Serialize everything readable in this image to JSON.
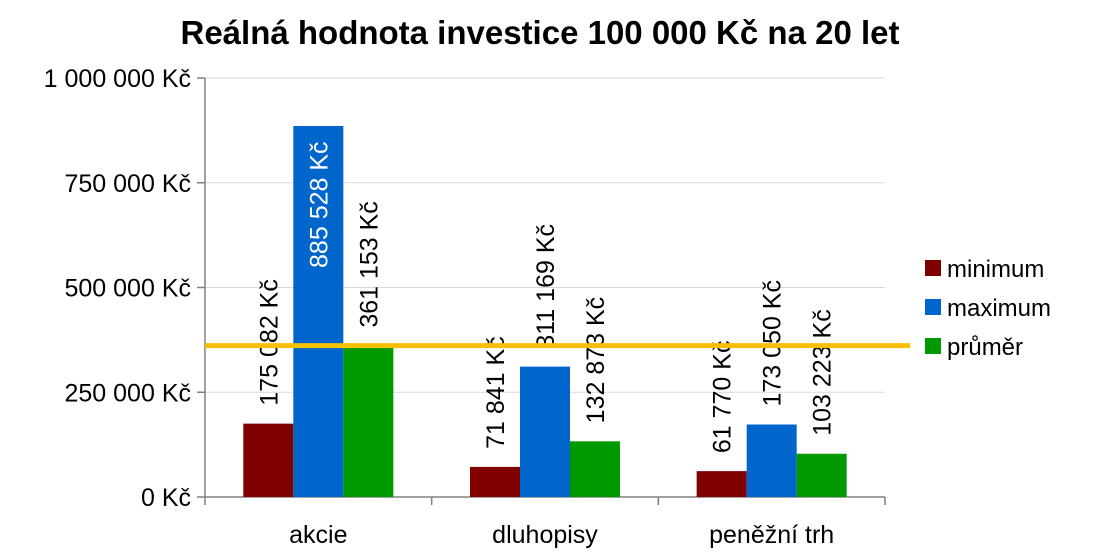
{
  "chart_data": {
    "type": "bar",
    "title": "Reálná hodnota investice 100 000 Kč na 20 let",
    "categories": [
      "akcie",
      "dluhopisy",
      "peněžní trh"
    ],
    "series": [
      {
        "name": "minimum",
        "color": "#800000",
        "values": [
          175082,
          71841,
          61770
        ],
        "labels": [
          "175 082 Kč",
          "71 841 Kč",
          "61 770 Kč"
        ],
        "label_color": "#000000"
      },
      {
        "name": "maximum",
        "color": "#0066cc",
        "values": [
          885528,
          311169,
          173050
        ],
        "labels": [
          "885 528 Kč",
          "311 169 Kč",
          "173 050 Kč"
        ],
        "label_color": "#000000",
        "label_color_inside": "#ffffff"
      },
      {
        "name": "průměr",
        "color": "#009900",
        "values": [
          361153,
          132873,
          103223
        ],
        "labels": [
          "361 153 Kč",
          "132 873 Kč",
          "103 223 Kč"
        ],
        "label_color": "#000000"
      }
    ],
    "ylim": [
      0,
      1000000
    ],
    "yticks": [
      {
        "value": 0,
        "label": "0 Kč"
      },
      {
        "value": 250000,
        "label": "250 000 Kč"
      },
      {
        "value": 500000,
        "label": "500 000 Kč"
      },
      {
        "value": 750000,
        "label": "750 000 Kč"
      },
      {
        "value": 1000000,
        "label": "1 000 000 Kč"
      }
    ],
    "reference_line": {
      "value": 361153,
      "color": "#f5c000"
    },
    "grid": true,
    "grid_color": "#d9d9d9",
    "legend_position": "right"
  }
}
